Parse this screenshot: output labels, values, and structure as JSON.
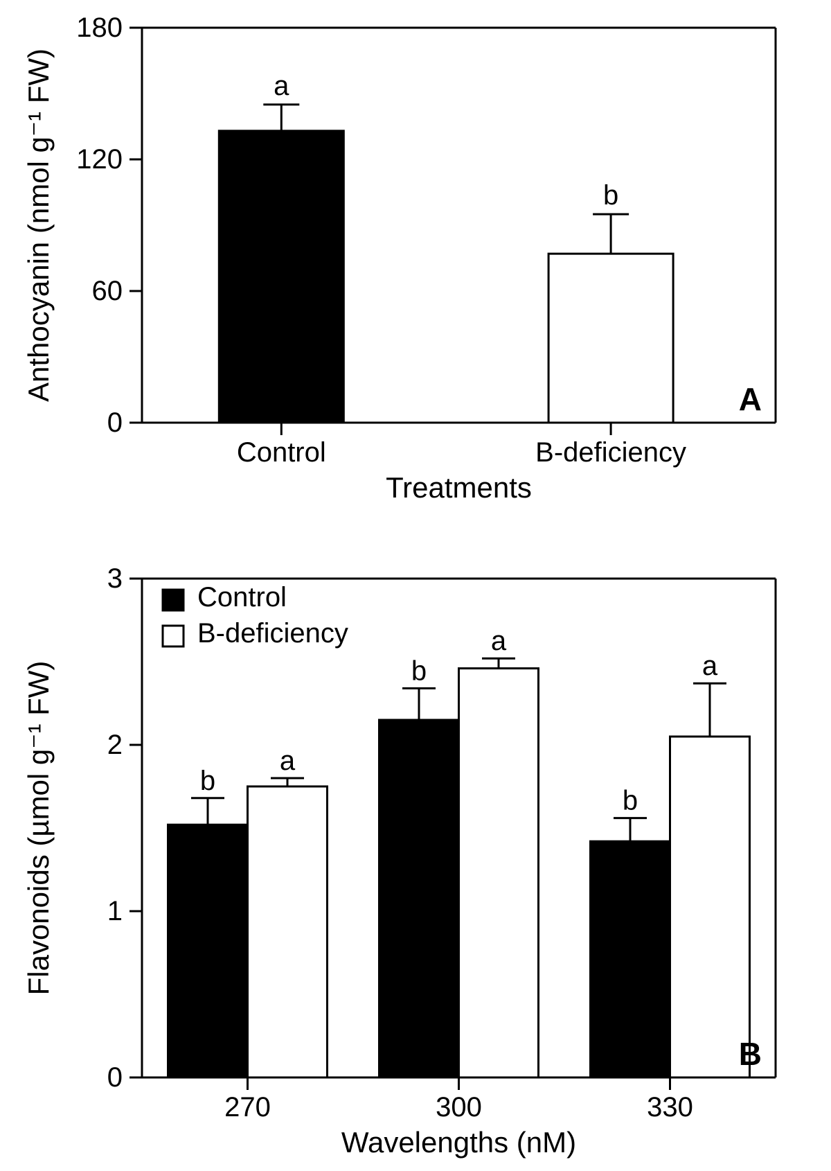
{
  "panelA": {
    "type": "bar",
    "panel_label": "A",
    "ylabel": "Anthocyanin (nmol g⁻¹ FW)",
    "xlabel": "Treatments",
    "ylim": [
      0,
      180
    ],
    "yticks": [
      0,
      60,
      120,
      180
    ],
    "categories": [
      "Control",
      "B-deficiency"
    ],
    "bars": [
      {
        "name": "Control",
        "value": 133,
        "err": 12,
        "fill": "#000000",
        "stroke": "#000000",
        "sig": "a"
      },
      {
        "name": "B-deficiency",
        "value": 77,
        "err": 18,
        "fill": "#ffffff",
        "stroke": "#000000",
        "sig": "b"
      }
    ],
    "axis_stroke": "#000000",
    "axis_stroke_width": 3,
    "bar_stroke_width": 3,
    "err_stroke_width": 3,
    "background_color": "#ffffff",
    "label_fontsize": 42,
    "tick_fontsize": 40,
    "sig_fontsize": 40,
    "panel_label_fontsize": 46
  },
  "panelB": {
    "type": "grouped-bar",
    "panel_label": "B",
    "ylabel": "Flavonoids (µmol g⁻¹ FW)",
    "xlabel": "Wavelengths (nM)",
    "ylim": [
      0,
      3
    ],
    "yticks": [
      0,
      1,
      2,
      3
    ],
    "categories": [
      "270",
      "300",
      "330"
    ],
    "series": [
      {
        "name": "Control",
        "fill": "#000000",
        "stroke": "#000000"
      },
      {
        "name": "B-deficiency",
        "fill": "#ffffff",
        "stroke": "#000000"
      }
    ],
    "groups": [
      {
        "cat": "270",
        "bars": [
          {
            "series": "Control",
            "value": 1.52,
            "err": 0.16,
            "sig": "b"
          },
          {
            "series": "B-deficiency",
            "value": 1.75,
            "err": 0.05,
            "sig": "a"
          }
        ]
      },
      {
        "cat": "300",
        "bars": [
          {
            "series": "Control",
            "value": 2.15,
            "err": 0.19,
            "sig": "b"
          },
          {
            "series": "B-deficiency",
            "value": 2.46,
            "err": 0.06,
            "sig": "a"
          }
        ]
      },
      {
        "cat": "330",
        "bars": [
          {
            "series": "Control",
            "value": 1.42,
            "err": 0.14,
            "sig": "b"
          },
          {
            "series": "B-deficiency",
            "value": 2.05,
            "err": 0.32,
            "sig": "a"
          }
        ]
      }
    ],
    "legend_items": [
      {
        "label": "Control",
        "fill": "#000000",
        "stroke": "#000000"
      },
      {
        "label": "B-deficiency",
        "fill": "#ffffff",
        "stroke": "#000000"
      }
    ],
    "axis_stroke": "#000000",
    "axis_stroke_width": 3,
    "bar_stroke_width": 3,
    "err_stroke_width": 3,
    "background_color": "#ffffff",
    "label_fontsize": 42,
    "tick_fontsize": 40,
    "sig_fontsize": 40,
    "panel_label_fontsize": 46
  }
}
